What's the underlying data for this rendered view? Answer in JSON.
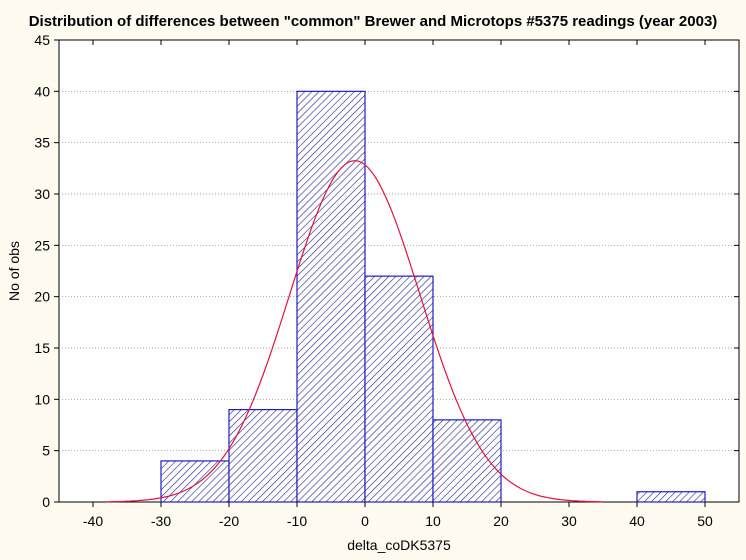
{
  "chart_data": {
    "type": "bar",
    "title": "Distribution of differences between \"common\" Brewer and Microtops #5375 readings (year 2003)",
    "xlabel": "delta_coDK5375",
    "ylabel": "No of obs",
    "xlim": [
      -45,
      55
    ],
    "ylim": [
      0,
      45
    ],
    "x_ticks": [
      -40,
      -30,
      -20,
      -10,
      0,
      10,
      20,
      30,
      40,
      50
    ],
    "y_ticks": [
      0,
      5,
      10,
      15,
      20,
      25,
      30,
      35,
      40,
      45
    ],
    "bins": [
      {
        "from": -30,
        "to": -20,
        "count": 4
      },
      {
        "from": -20,
        "to": -10,
        "count": 9
      },
      {
        "from": -10,
        "to": 0,
        "count": 40
      },
      {
        "from": 0,
        "to": 10,
        "count": 22
      },
      {
        "from": 10,
        "to": 20,
        "count": 8
      },
      {
        "from": 20,
        "to": 30,
        "count": 0
      },
      {
        "from": 30,
        "to": 40,
        "count": 0
      },
      {
        "from": 40,
        "to": 50,
        "count": 1
      }
    ],
    "normal_fit": {
      "mean": -1.5,
      "sd": 9.6,
      "scale": 800
    },
    "grid": true,
    "colors": {
      "bar_stroke": "#1f1fbf",
      "hatch": "#1f1f8f",
      "curve": "#e0143c",
      "grid": "#808080"
    }
  }
}
